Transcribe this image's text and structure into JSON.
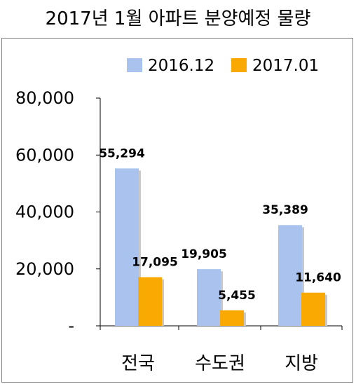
{
  "title": "2017년 1월 아파트 분양예정 물량",
  "colors": {
    "series_2016": "#a9c3ee",
    "series_2017": "#f9a901",
    "axis": "#000000"
  },
  "chart_data": {
    "type": "bar",
    "title": "2017년 1월 아파트 분양예정 물량",
    "categories": [
      "전국",
      "수도권",
      "지방"
    ],
    "series": [
      {
        "name": "2016.12",
        "values": [
          55294,
          19905,
          35389
        ],
        "labels": [
          "55,294",
          "19,905",
          "35,389"
        ]
      },
      {
        "name": "2017.01",
        "values": [
          17095,
          5455,
          11640
        ],
        "labels": [
          "17,095",
          "5,455",
          "11,640"
        ]
      }
    ],
    "y_ticks": [
      0,
      20000,
      40000,
      60000,
      80000
    ],
    "y_tick_labels": [
      "-",
      "20,000",
      "40,000",
      "60,000",
      "80,000"
    ],
    "ylim": [
      0,
      80000
    ],
    "grid": false,
    "legend_position": "top-right",
    "xlabel": "",
    "ylabel": ""
  }
}
